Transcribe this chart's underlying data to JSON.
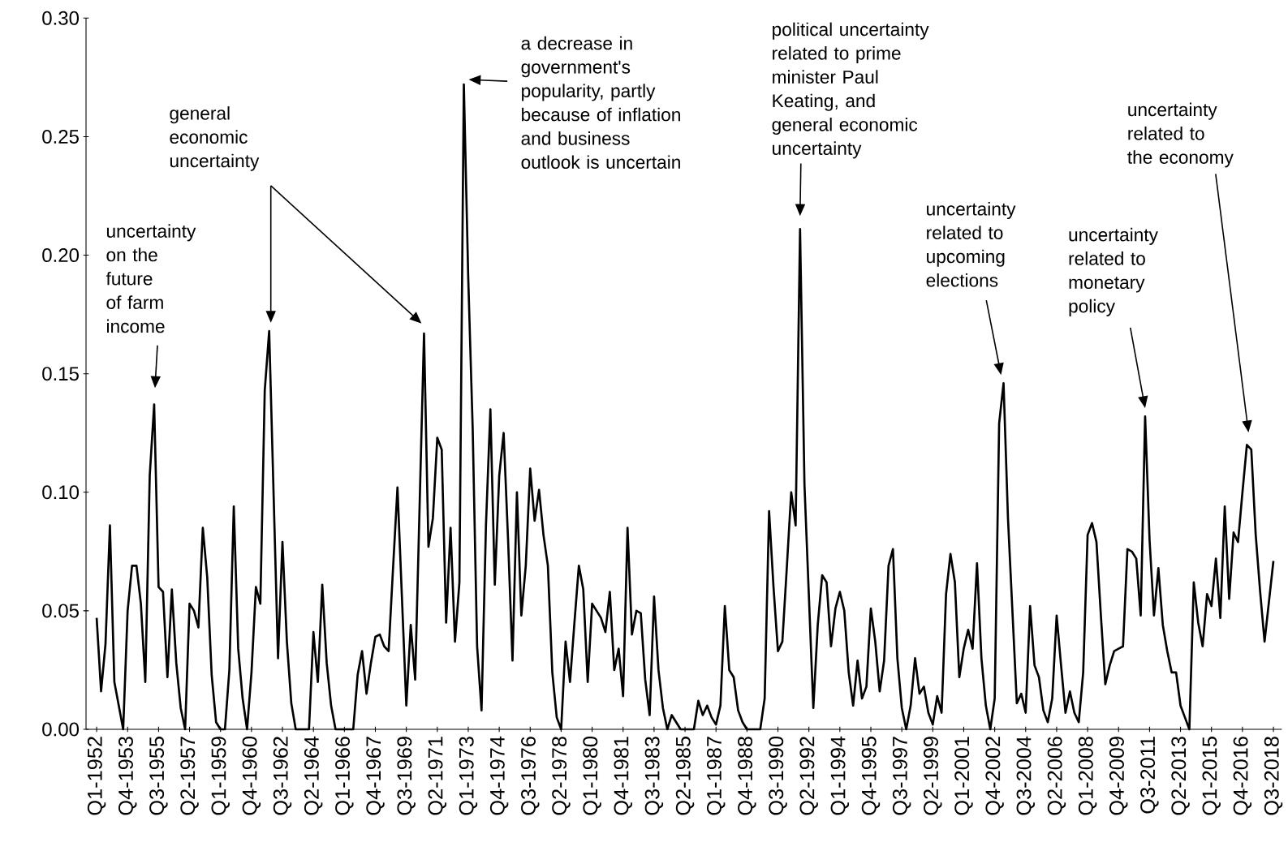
{
  "chart_data": {
    "type": "line",
    "categories": [
      "Q1-1952",
      null,
      null,
      null,
      null,
      null,
      null,
      "Q4-1953",
      null,
      null,
      null,
      null,
      null,
      null,
      "Q3-1955",
      null,
      null,
      null,
      null,
      null,
      null,
      "Q2-1957",
      null,
      null,
      null,
      null,
      null,
      null,
      "Q1-1959",
      null,
      null,
      null,
      null,
      null,
      null,
      "Q4-1960",
      null,
      null,
      null,
      null,
      null,
      null,
      "Q3-1962",
      null,
      null,
      null,
      null,
      null,
      null,
      "Q2-1964",
      null,
      null,
      null,
      null,
      null,
      null,
      "Q1-1966",
      null,
      null,
      null,
      null,
      null,
      null,
      "Q4-1967",
      null,
      null,
      null,
      null,
      null,
      null,
      "Q3-1969",
      null,
      null,
      null,
      null,
      null,
      null,
      "Q2-1971",
      null,
      null,
      null,
      null,
      null,
      null,
      "Q1-1973",
      null,
      null,
      null,
      null,
      null,
      null,
      "Q4-1974",
      null,
      null,
      null,
      null,
      null,
      null,
      "Q3-1976",
      null,
      null,
      null,
      null,
      null,
      null,
      "Q2-1978",
      null,
      null,
      null,
      null,
      null,
      null,
      "Q1-1980",
      null,
      null,
      null,
      null,
      null,
      null,
      "Q4-1981",
      null,
      null,
      null,
      null,
      null,
      null,
      "Q3-1983",
      null,
      null,
      null,
      null,
      null,
      null,
      "Q2-1985",
      null,
      null,
      null,
      null,
      null,
      null,
      "Q1-1987",
      null,
      null,
      null,
      null,
      null,
      null,
      "Q4-1988",
      null,
      null,
      null,
      null,
      null,
      null,
      "Q3-1990",
      null,
      null,
      null,
      null,
      null,
      null,
      "Q2-1992",
      null,
      null,
      null,
      null,
      null,
      null,
      "Q1-1994",
      null,
      null,
      null,
      null,
      null,
      null,
      "Q4-1995",
      null,
      null,
      null,
      null,
      null,
      null,
      "Q3-1997",
      null,
      null,
      null,
      null,
      null,
      null,
      "Q2-1999",
      null,
      null,
      null,
      null,
      null,
      null,
      "Q1-2001",
      null,
      null,
      null,
      null,
      null,
      null,
      "Q4-2002",
      null,
      null,
      null,
      null,
      null,
      null,
      "Q3-2004",
      null,
      null,
      null,
      null,
      null,
      null,
      "Q2-2006",
      null,
      null,
      null,
      null,
      null,
      null,
      "Q1-2008",
      null,
      null,
      null,
      null,
      null,
      null,
      "Q4-2009",
      null,
      null,
      null,
      null,
      null,
      null,
      "Q3-2011",
      null,
      null,
      null,
      null,
      null,
      null,
      "Q2-2013",
      null,
      null,
      null,
      null,
      null,
      null,
      "Q1-2015",
      null,
      null,
      null,
      null,
      null,
      null,
      "Q4-2016",
      null,
      null,
      null,
      null,
      null,
      null,
      "Q3-2018"
    ],
    "series": [
      {
        "color": "#000000",
        "values": [
          0.047,
          0.016,
          0.036,
          0.086,
          0.02,
          0.01,
          0,
          0.05,
          0.069,
          0.069,
          0.053,
          0.02,
          0.107,
          0.137,
          0.06,
          0.058,
          0.022,
          0.059,
          0.028,
          0.009,
          0,
          0.053,
          0.05,
          0.043,
          0.085,
          0.064,
          0.023,
          0.003,
          0,
          0,
          0.025,
          0.094,
          0.034,
          0.013,
          0,
          0.024,
          0.06,
          0.053,
          0.143,
          0.168,
          0.099,
          0.03,
          0.079,
          0.037,
          0.011,
          0,
          0,
          0,
          0,
          0.041,
          0.02,
          0.061,
          0.028,
          0.01,
          0,
          0,
          0,
          0,
          0,
          0.023,
          0.033,
          0.015,
          0.028,
          0.039,
          0.04,
          0.035,
          0.033,
          0.068,
          0.102,
          0.056,
          0.01,
          0.044,
          0.021,
          0.094,
          0.167,
          0.077,
          0.089,
          0.123,
          0.118,
          0.045,
          0.085,
          0.037,
          0.062,
          0.272,
          0.19,
          0.127,
          0.035,
          0.008,
          0.086,
          0.135,
          0.061,
          0.107,
          0.125,
          0.08,
          0.029,
          0.1,
          0.048,
          0.069,
          0.11,
          0.088,
          0.101,
          0.082,
          0.069,
          0.024,
          0.005,
          0,
          0.037,
          0.02,
          0.045,
          0.069,
          0.059,
          0.02,
          0.053,
          0.05,
          0.047,
          0.041,
          0.058,
          0.025,
          0.034,
          0.014,
          0.085,
          0.04,
          0.05,
          0.049,
          0.021,
          0.006,
          0.056,
          0.025,
          0.009,
          0,
          0.006,
          0.003,
          0,
          0,
          0,
          0,
          0.012,
          0.006,
          0.01,
          0.005,
          0.002,
          0.01,
          0.052,
          0.025,
          0.022,
          0.008,
          0.003,
          0,
          0,
          0,
          0,
          0.013,
          0.092,
          0.06,
          0.033,
          0.037,
          0.068,
          0.1,
          0.086,
          0.211,
          0.103,
          0.056,
          0.009,
          0.044,
          0.065,
          0.062,
          0.035,
          0.051,
          0.058,
          0.05,
          0.024,
          0.01,
          0.029,
          0.013,
          0.018,
          0.051,
          0.037,
          0.016,
          0.029,
          0.069,
          0.076,
          0.03,
          0.009,
          0,
          0.01,
          0.03,
          0.015,
          0.018,
          0.007,
          0.002,
          0.014,
          0.007,
          0.057,
          0.074,
          0.062,
          0.022,
          0.034,
          0.042,
          0.034,
          0.07,
          0.03,
          0.01,
          0,
          0.013,
          0.129,
          0.146,
          0.089,
          0.05,
          0.011,
          0.015,
          0.007,
          0.052,
          0.027,
          0.022,
          0.008,
          0.003,
          0.013,
          0.048,
          0.027,
          0.007,
          0.016,
          0.007,
          0.003,
          0.024,
          0.082,
          0.087,
          0.079,
          0.048,
          0.019,
          0.027,
          0.033,
          0.034,
          0.035,
          0.076,
          0.075,
          0.072,
          0.048,
          0.132,
          0.08,
          0.048,
          0.068,
          0.044,
          0.033,
          0.024,
          0.024,
          0.01,
          0.005,
          0,
          0.062,
          0.045,
          0.035,
          0.057,
          0.052,
          0.072,
          0.047,
          0.094,
          0.055,
          0.083,
          0.079,
          0.1,
          0.12,
          0.118,
          0.082,
          0.058,
          0.037,
          0.054,
          0.071
        ]
      }
    ],
    "ylim": [
      0,
      0.3
    ],
    "yticks": [
      {
        "value": 0,
        "label": "0.00"
      },
      {
        "value": 0.05,
        "label": "0.05"
      },
      {
        "value": 0.1,
        "label": "0.10"
      },
      {
        "value": 0.15,
        "label": "0.15"
      },
      {
        "value": 0.2,
        "label": "0.20"
      },
      {
        "value": 0.25,
        "label": "0.25"
      },
      {
        "value": 0.3,
        "label": "0.30"
      }
    ],
    "annotations": [
      "uncertainty on the future of farm income",
      "general economic uncertainty",
      "a decrease in government's popularity, partly because of inflation and business outlook is uncertain",
      "political uncertainty related to prime minister Paul Keating, and general economic uncertainty",
      "uncertainty related to upcoming elections",
      "uncertainty related to monetary policy",
      "uncertainty related to the economy"
    ]
  }
}
